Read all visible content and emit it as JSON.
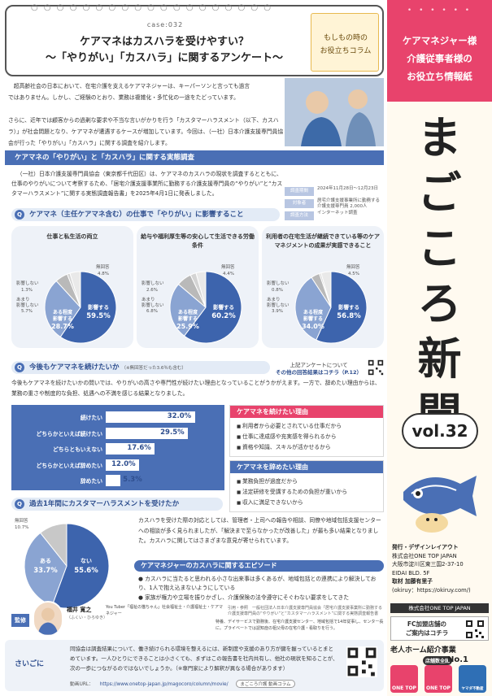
{
  "right": {
    "tagline": [
      "ケアマネジャー様",
      "介護従事者様の",
      "お役立ち情報紙"
    ],
    "masthead": [
      "ま",
      "ご",
      "こ",
      "ろ",
      "新",
      "聞"
    ],
    "vol": "vol.32",
    "credits": {
      "line1": "発行・デザインレイアウト",
      "line2": "株式会社ONE TOP JAPAN",
      "line3": "大阪市淀川区東三国2-37-10",
      "line4": "EIDAI BLD. 5F",
      "line5": "取材 加藤有里子",
      "line6": "(okiruy：https://okiruy.com/)"
    },
    "company": "株式会社ONE TOP JAPAN",
    "fc_text": "FC加盟店舗の\nご案内はコチラ",
    "ranking_label": "老人ホーム紹介事業",
    "ranking_badge": "店舗数全国",
    "ranking_no": "No.1",
    "logo_labels": [
      "ONE TOP",
      "ONE TOP",
      "ヤマダ不動産"
    ]
  },
  "title": {
    "case_id": "case:032",
    "line1": "ケアマネはカスハラを受けやすい？",
    "line2": "～「やりがい」「カスハラ」に関するアンケート～",
    "memo": [
      "もしもの時の",
      "お役立ちコラム"
    ]
  },
  "intro": {
    "para1": "超高齢社会の日本において、在宅介護を支えるケアマネジャーは、キーパーソンと言っても過言ではありません。しかし、ご経験のとおり、業務は複雑化・多忙化の一途をたどっています。",
    "para2": "さらに、近年では顧客からの過剰な要求や不当な言いがかりを行う「カスタマーハラスメント（以下、カスハラ）」が社会問題となり、ケアマネが遭遇するケースが増加しています。今回は、（一社）日本介護支援専門員協会が行った「やりがい」「カスハラ」に関する調査を紹介します。"
  },
  "survey": {
    "heading": "ケアマネの「やりがい」と「カスハラ」に関する実態調査",
    "text": "（一社）日本介護支援専門員協会（東京都千代田区）は、ケアマネのカスハラの現状を調査するとともに、仕事のやりがいについて考察するため、「居宅介護支援事業所に勤務する介護支援専門員の“やりがい”と“カスタマーハラスメント”に関する実態調査報告書」を2025年4月1日に発表しました。",
    "rows": [
      {
        "k": "調査期間",
        "v": "2024年11月28日〜12月23日"
      },
      {
        "k": "対象者",
        "v": "居宅介護支援事業所に勤務する介護支援専門員 2,000人"
      },
      {
        "k": "調査方法",
        "v": "インターネット調査"
      }
    ]
  },
  "q1": {
    "badge": "Q",
    "title": "ケアマネ（主任ケアマネ含む）の仕事で「やりがい」に影響すること"
  },
  "pies": [
    {
      "title": "仕事と私生活の両立",
      "slices": [
        {
          "label": "影響する",
          "value": 59.5
        },
        {
          "label": "ある程度影響する",
          "value": 28.7
        },
        {
          "label": "あまり影響しない",
          "value": 5.7
        },
        {
          "label": "影響しない",
          "value": 1.3
        },
        {
          "label": "無回答",
          "value": 4.8
        }
      ]
    },
    {
      "title": "給与や福利厚生等の安心して生活できる労働条件",
      "slices": [
        {
          "label": "影響する",
          "value": 60.2
        },
        {
          "label": "ある程度影響する",
          "value": 25.9
        },
        {
          "label": "あまり影響しない",
          "value": 6.8
        },
        {
          "label": "影響しない",
          "value": 2.6
        },
        {
          "label": "無回答",
          "value": 4.4
        }
      ]
    },
    {
      "title": "利用者の在宅生活が継続できている等のケアマネジメントの成果が実感できること",
      "slices": [
        {
          "label": "影響する",
          "value": 56.8
        },
        {
          "label": "ある程度影響する",
          "value": 34.0
        },
        {
          "label": "あまり影響しない",
          "value": 3.9
        },
        {
          "label": "影響しない",
          "value": 0.8
        },
        {
          "label": "無回答",
          "value": 4.5
        }
      ]
    }
  ],
  "callout": {
    "line1": "上記アンケートについて",
    "line2": "その他の回答結果はコチラ（P.12）"
  },
  "q2": {
    "badge": "Q",
    "title": "今後もケアマネを続けたいか",
    "note": "（※無回答だった3.6％も含む）",
    "text": "今後もケアマネを続けたいかの問いでは、やりがいの高さや専門性が続けたい理由となっていることがうかがえます。一方で、辞めたい理由からは、業務の重さや制度的な負担、処遇への不満を感じる結果となりました。"
  },
  "chart_data": [
    {
      "type": "bar",
      "categories": [
        "続けたい",
        "どちらかといえば続けたい",
        "どちらともいえない",
        "どちらかといえば辞めたい",
        "辞めたい"
      ],
      "values": [
        32.0,
        29.5,
        17.6,
        12.0,
        5.3
      ],
      "value_labels": [
        "32.0%",
        "29.5%",
        "17.6%",
        "12.0%",
        "5.3%"
      ],
      "unit": "%",
      "xlim": [
        0,
        35
      ]
    },
    {
      "type": "pie",
      "categories": [
        "ない",
        "ある",
        "無回答"
      ],
      "values": [
        55.6,
        33.7,
        10.7
      ],
      "value_labels": [
        "55.6%",
        "33.7%",
        "10.7%"
      ]
    }
  ],
  "reasons": {
    "keep_head": "ケアマネを続けたい理由",
    "keep_items": [
      "利用者から必要とされている仕事だから",
      "仕事に達成感や充実感を得られるから",
      "資格や知識、スキルが活かせるから"
    ],
    "quit_head": "ケアマネを辞めたい理由",
    "quit_items": [
      "業務負担が過度だから",
      "法定研修を受講するための負担が重いから",
      "収入に満足できないから"
    ],
    "keep_color": "#e8436c",
    "quit_color": "#4a6fb5"
  },
  "q3": {
    "badge": "Q",
    "title": "過去1年間にカスタマーハラスメントを受けたか",
    "text": "カスハラを受けた際の対応としては、管理者・上司への報告や相談、同僚や地域包括支援センターへの相談が多く見られましたが、「解決まで至らなかったが改善した」が最も多い結果となりました。カスハラに関してはさまざまな意見が寄せられています。"
  },
  "episodes": {
    "head": "ケアマネジャーのカスハラに関するエピソード",
    "items": [
      "カスハラに当たると思われる小さな出来事は多くあるが、地域包括との連携により解決しており、1人で抱え込まないようにしている",
      "家族が権力や立場を振りかざし、介護保険の法令遵守にそぐわない要求をしてきた"
    ],
    "quote_src": "引用・参照",
    "quote_note": "一般社団法人日本介護支援専門員協会「居宅介護支援事業所に勤務する介護支援専門員の“やりがい”と“カスタマーハラスメント”に関する実態調査報告書"
  },
  "supervisor": {
    "badge": "監修",
    "name": "福井 寛之",
    "kana": "（ふくい・ひろゆき）",
    "desc": "You Tuber「福祉の猫ちゃん」社会福祉士・介護福祉士・ケアマネジャー",
    "desc2": "特養、デイサービスで勤務後、在宅介護支援センター、地域包括で14年従事し、センター長に。プライベートでは認知症の祖父母の在宅介護・看取りを行う。"
  },
  "closing": {
    "label": "さいごに",
    "text": "同協会は調査結果について、働き続けられる環境を整えるには、新制度や支援のあり方が鍵を握っているとまとめています。一人ひとりにできることは小さくても、まずはこの報告書を社内共有し、他社の現状を知ることが、次の一歩につながるのではないでしょうか。（※専門家により解釈が異なる場合があります）",
    "url_label": "動画URL：",
    "url": "https://www.onetop-japan.jp/magocoro/column/movie/",
    "button": "まごころ介護 動画コラム"
  }
}
